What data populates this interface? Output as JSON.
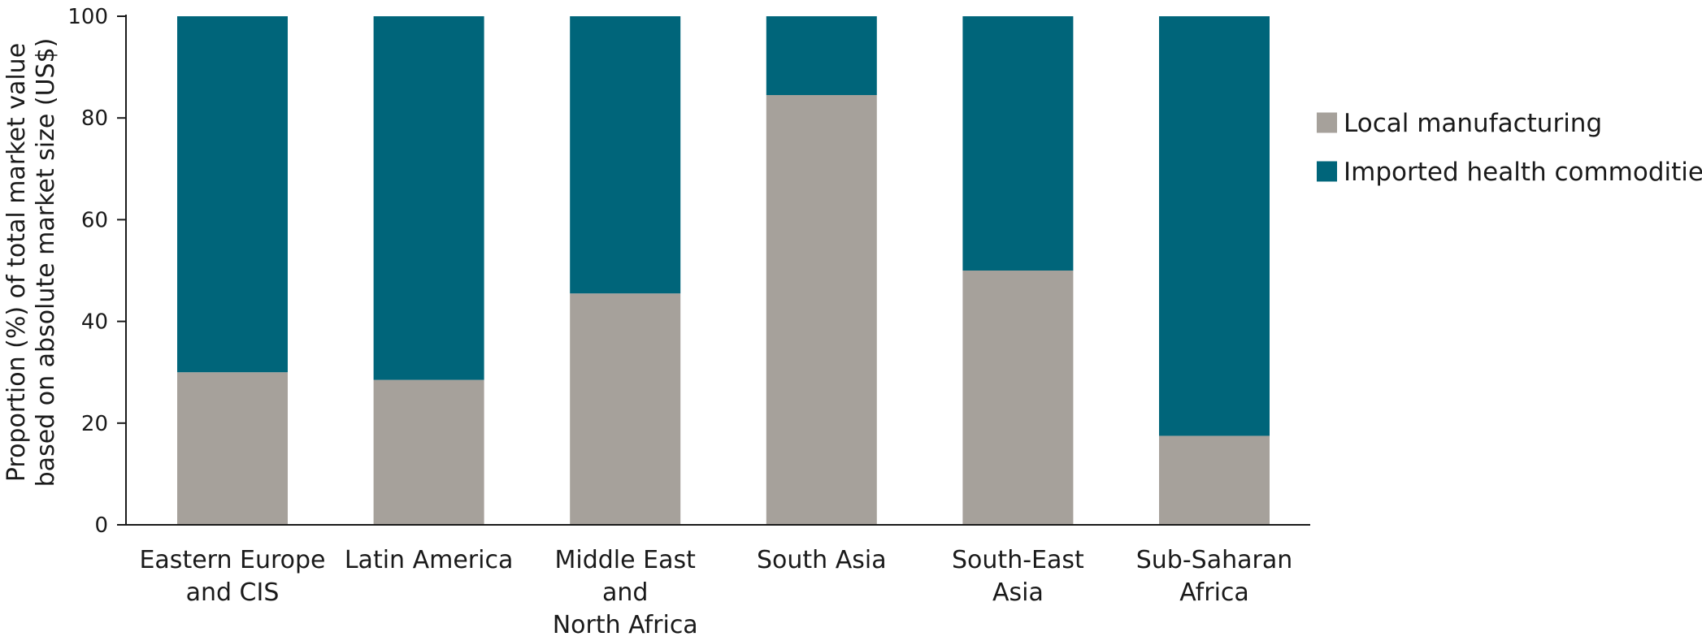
{
  "chart_data": {
    "type": "bar",
    "stacked": true,
    "categories": [
      [
        "Eastern Europe",
        "and CIS"
      ],
      [
        "Latin America"
      ],
      [
        "Middle East",
        "and",
        "North Africa"
      ],
      [
        "South Asia"
      ],
      [
        "South-East",
        "Asia"
      ],
      [
        "Sub-Saharan",
        "Africa"
      ]
    ],
    "series": [
      {
        "name": "Local manufacturing",
        "color": "#a6a19b",
        "values": [
          30,
          28.5,
          45.5,
          84.5,
          50,
          17.5
        ]
      },
      {
        "name": "Imported health commodities",
        "color": "#00657a",
        "values": [
          70,
          71.5,
          54.5,
          15.5,
          50,
          82.5
        ]
      }
    ],
    "ylim": [
      0,
      100
    ],
    "yticks": [
      0,
      20,
      40,
      60,
      80,
      100
    ],
    "ylabel": [
      "Proportion (%) of total market value",
      "based on absolute market size (US$)"
    ],
    "xlabel": "",
    "grid": false,
    "legend_position": "right"
  }
}
